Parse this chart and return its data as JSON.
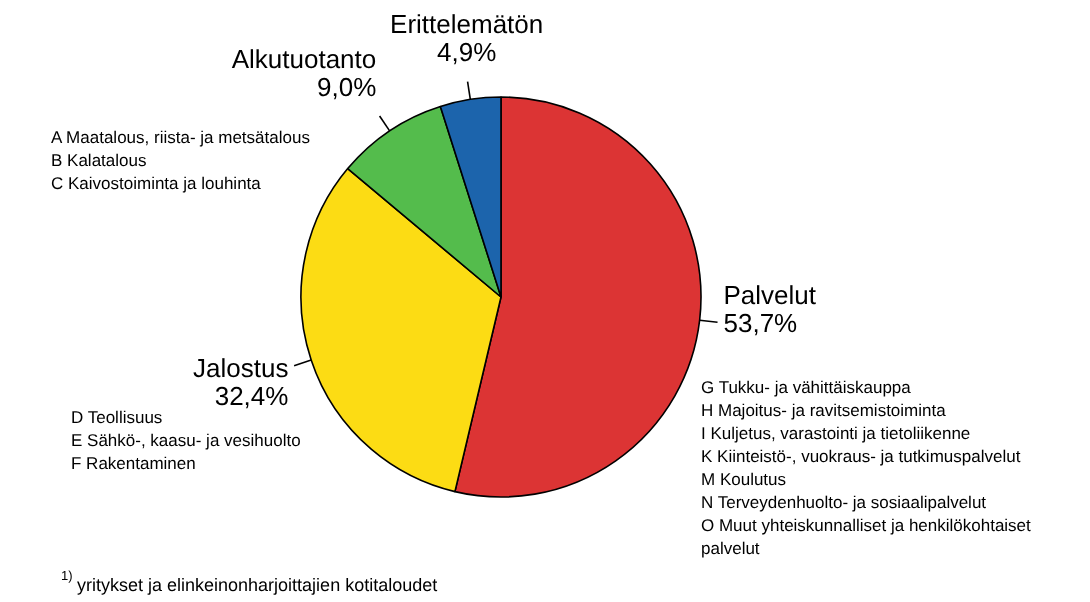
{
  "chart_data": {
    "type": "pie",
    "categories": [
      "Palvelut",
      "Jalostus",
      "Alkutuotanto",
      "Erittelemätön"
    ],
    "values": [
      53.7,
      32.4,
      9.0,
      4.9
    ],
    "value_labels": [
      "53,7%",
      "32,4%",
      "9,0%",
      "4,9%"
    ],
    "colors": [
      "#dc3434",
      "#fcdc14",
      "#54bc4c",
      "#1c64ac"
    ],
    "annotations": [
      "G Tukku- ja vähittäiskauppa\nH  Majoitus- ja ravitsemistoiminta\nI   Kuljetus, varastointi ja tietoliikenne\nK  Kiinteistö-, vuokraus- ja tutkimuspalvelut\nM  Koulutus\nN Terveydenhuolto- ja sosiaalipalvelut\nO Muut yhteiskunnalliset ja henkilökohtaiset\npalvelut",
      "D Teollisuus\nE Sähkö-, kaasu- ja vesihuolto\nF Rakentaminen",
      "A Maatalous, riista- ja metsätalous\nB Kalatalous\nC Kaivostoiminta ja louhinta",
      "$^{1)}$ yritykset ja elinkeinonharjoittajien kotitaloudet"
    ]
  }
}
